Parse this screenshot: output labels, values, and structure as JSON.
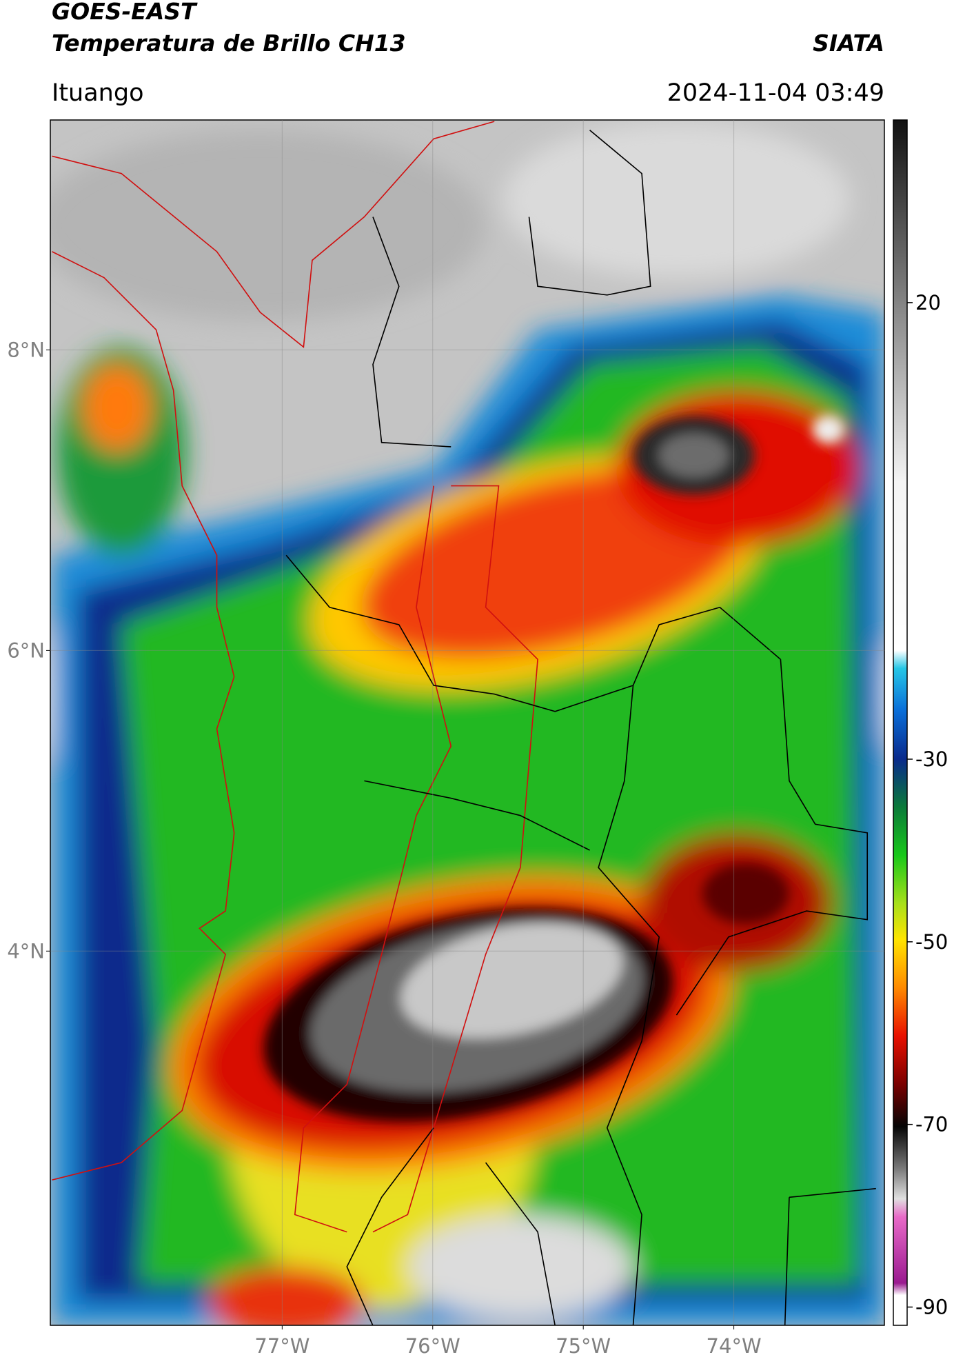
{
  "header": {
    "title": "GOES-EAST",
    "subtitle": "Temperatura de Brillo CH13",
    "source": "SIATA",
    "location": "Ituango",
    "timestamp": "2024-11-04 03:49"
  },
  "map": {
    "xlim": [
      -78.54,
      -73.0
    ],
    "ylim": [
      1.51,
      9.53
    ],
    "xticks": [
      {
        "value": -77,
        "label": "77°W"
      },
      {
        "value": -76,
        "label": "76°W"
      },
      {
        "value": -75,
        "label": "75°W"
      },
      {
        "value": -74,
        "label": "74°W"
      }
    ],
    "yticks": [
      {
        "value": 8,
        "label": "8°N"
      },
      {
        "value": 6,
        "label": "6°N"
      },
      {
        "value": 4,
        "label": "4°N"
      }
    ],
    "grid": true
  },
  "colorbar": {
    "lim": [
      -92,
      40
    ],
    "ticks": [
      20,
      -30,
      -50,
      -70,
      -90
    ]
  }
}
